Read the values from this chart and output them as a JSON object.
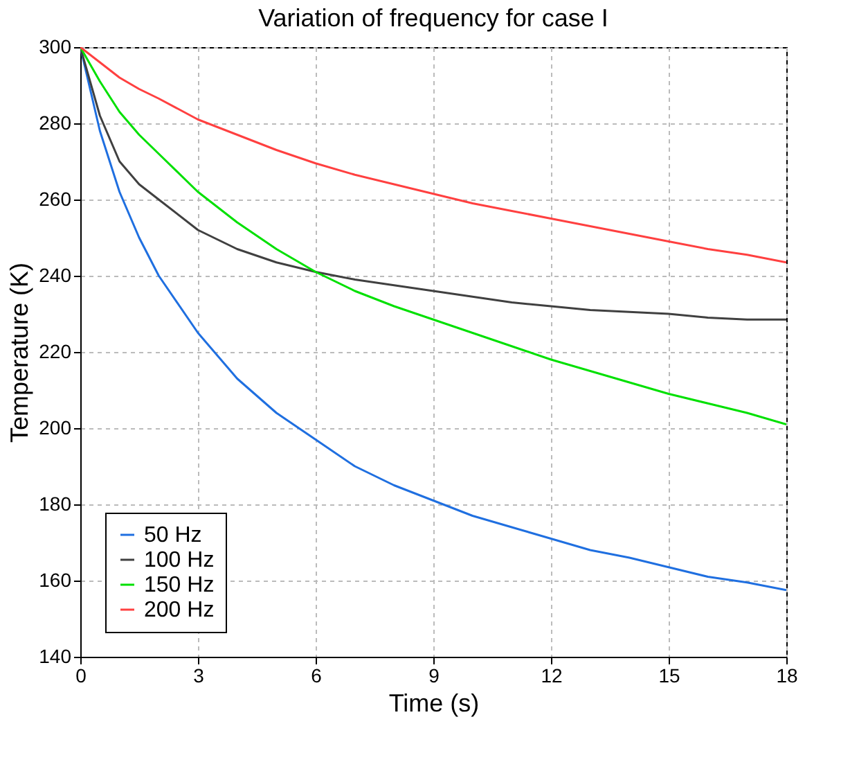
{
  "chart_data": {
    "type": "line",
    "title": "Variation of frequency for case I",
    "xlabel": "Time (s)",
    "ylabel": "Temperature (K)",
    "x": [
      0,
      0.5,
      1,
      1.5,
      2,
      3,
      4,
      5,
      6,
      7,
      8,
      9,
      10,
      11,
      12,
      13,
      14,
      15,
      16,
      17,
      18
    ],
    "series": [
      {
        "name": "50 Hz",
        "color": "#1f6fe0",
        "values": [
          300,
          278,
          262,
          250,
          240,
          225,
          213,
          204,
          197,
          190,
          185,
          181,
          177,
          174,
          171,
          168,
          166,
          163.5,
          161,
          159.5,
          157.5
        ]
      },
      {
        "name": "100 Hz",
        "color": "#404040",
        "values": [
          300,
          282,
          270,
          264,
          260,
          252,
          247,
          243.5,
          241,
          239,
          237.5,
          236,
          234.5,
          233,
          232,
          231,
          230.5,
          230,
          229,
          228.5,
          228.5
        ]
      },
      {
        "name": "150 Hz",
        "color": "#00e000",
        "values": [
          300,
          291,
          283,
          277,
          272,
          262,
          254,
          247,
          241,
          236,
          232,
          228.5,
          225,
          221.5,
          218,
          215,
          212,
          209,
          206.5,
          204,
          201
        ]
      },
      {
        "name": "200 Hz",
        "color": "#ff4040",
        "values": [
          300,
          296,
          292,
          289,
          286.5,
          281,
          277,
          273,
          269.5,
          266.5,
          264,
          261.5,
          259,
          257,
          255,
          253,
          251,
          249,
          247,
          245.5,
          243.5
        ]
      }
    ],
    "xlim": [
      0,
      18
    ],
    "xticks": [
      0,
      3,
      6,
      9,
      12,
      15,
      18
    ],
    "ylim": [
      140,
      300
    ],
    "yticks": [
      140,
      160,
      180,
      200,
      220,
      240,
      260,
      280,
      300
    ],
    "grid": true,
    "legend": "bottom left",
    "marker": "none",
    "line_style": "solid"
  }
}
